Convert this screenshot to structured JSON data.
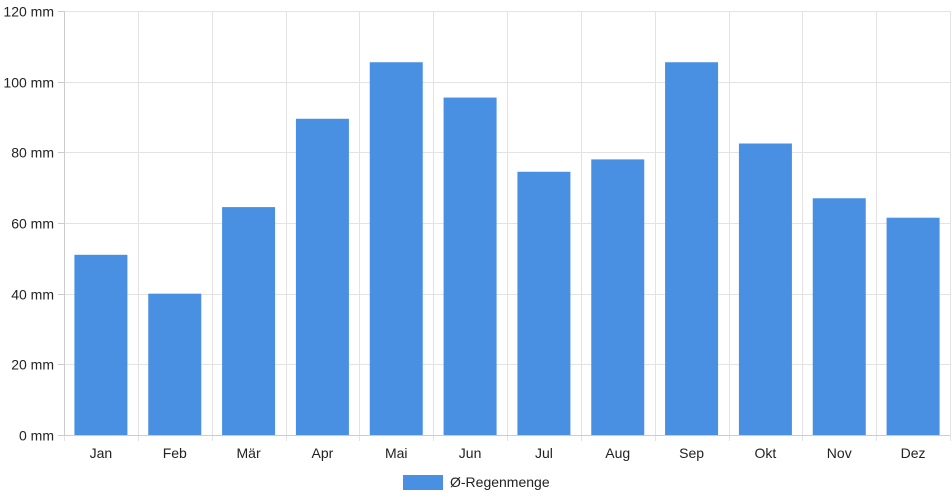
{
  "chart_data": {
    "type": "bar",
    "categories": [
      "Jan",
      "Feb",
      "Mär",
      "Apr",
      "Mai",
      "Jun",
      "Jul",
      "Aug",
      "Sep",
      "Okt",
      "Nov",
      "Dez"
    ],
    "series": [
      {
        "name": "Ø-Regenmenge",
        "values": [
          51,
          40,
          64.5,
          89.5,
          105.5,
          95.5,
          74.5,
          78,
          105.5,
          82.5,
          67,
          61.5
        ],
        "color": "#4a90e2"
      }
    ],
    "ylim": [
      0,
      120
    ],
    "yticks": [
      0,
      20,
      40,
      60,
      80,
      100,
      120
    ],
    "ytick_labels": [
      "0 mm",
      "20 mm",
      "40 mm",
      "60 mm",
      "80 mm",
      "100 mm",
      "120 mm"
    ],
    "grid": true,
    "legend_position": "bottom-center"
  }
}
